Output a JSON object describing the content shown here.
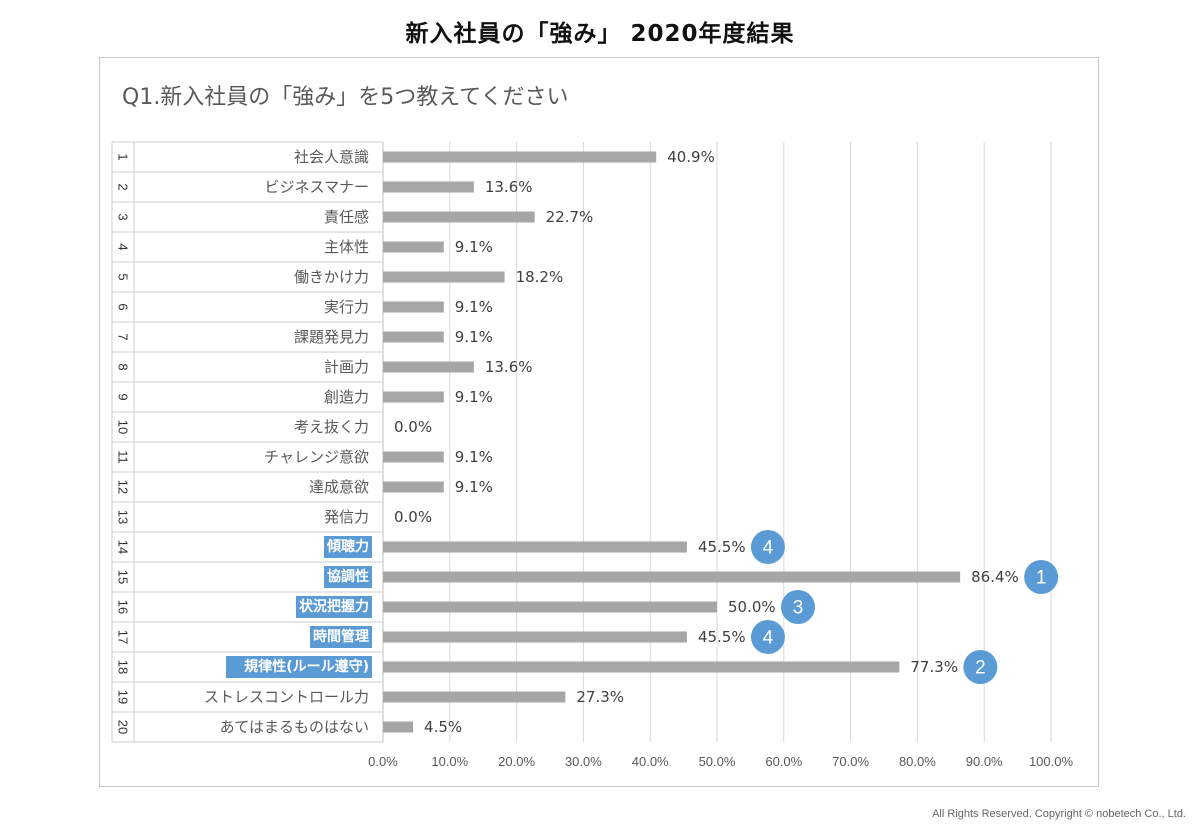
{
  "header": {
    "title": "新入社員の「強み」 2020年度結果"
  },
  "footer": {
    "copyright": "All Rights Reserved. Copyright © nobetech Co., Ltd."
  },
  "colors": {
    "bar": "#a6a6a6",
    "highlight": "#5b9bd5",
    "grid": "#d9d9d9",
    "text": "#595959"
  },
  "chart_data": {
    "type": "bar",
    "orientation": "horizontal",
    "title": "Q1.新入社員の「強み」を5つ教えてください",
    "xlim": [
      0,
      100
    ],
    "x_ticks": [
      "0.0%",
      "10.0%",
      "20.0%",
      "30.0%",
      "40.0%",
      "50.0%",
      "60.0%",
      "70.0%",
      "80.0%",
      "90.0%",
      "100.0%"
    ],
    "grid": true,
    "categories": [
      {
        "no": "1",
        "label": "社会人意識",
        "value": 40.9,
        "value_label": "40.9%"
      },
      {
        "no": "2",
        "label": "ビジネスマナー",
        "value": 13.6,
        "value_label": "13.6%"
      },
      {
        "no": "3",
        "label": "責任感",
        "value": 22.7,
        "value_label": "22.7%"
      },
      {
        "no": "4",
        "label": "主体性",
        "value": 9.1,
        "value_label": "9.1%"
      },
      {
        "no": "5",
        "label": "働きかけ力",
        "value": 18.2,
        "value_label": "18.2%"
      },
      {
        "no": "6",
        "label": "実行力",
        "value": 9.1,
        "value_label": "9.1%"
      },
      {
        "no": "7",
        "label": "課題発見力",
        "value": 9.1,
        "value_label": "9.1%"
      },
      {
        "no": "8",
        "label": "計画力",
        "value": 13.6,
        "value_label": "13.6%"
      },
      {
        "no": "9",
        "label": "創造力",
        "value": 9.1,
        "value_label": "9.1%"
      },
      {
        "no": "10",
        "label": "考え抜く力",
        "value": 0.0,
        "value_label": "0.0%"
      },
      {
        "no": "11",
        "label": "チャレンジ意欲",
        "value": 9.1,
        "value_label": "9.1%"
      },
      {
        "no": "12",
        "label": "達成意欲",
        "value": 9.1,
        "value_label": "9.1%"
      },
      {
        "no": "13",
        "label": "発信力",
        "value": 0.0,
        "value_label": "0.0%"
      },
      {
        "no": "14",
        "label": "傾聴力",
        "value": 45.5,
        "value_label": "45.5%",
        "highlight": true,
        "rank": "4"
      },
      {
        "no": "15",
        "label": "協調性",
        "value": 86.4,
        "value_label": "86.4%",
        "highlight": true,
        "rank": "1"
      },
      {
        "no": "16",
        "label": "状況把握力",
        "value": 50.0,
        "value_label": "50.0%",
        "highlight": true,
        "rank": "3"
      },
      {
        "no": "17",
        "label": "時間管理",
        "value": 45.5,
        "value_label": "45.5%",
        "highlight": true,
        "rank": "4"
      },
      {
        "no": "18",
        "label": "規律性(ルール遵守)",
        "value": 77.3,
        "value_label": "77.3%",
        "highlight": true,
        "rank": "2"
      },
      {
        "no": "19",
        "label": "ストレスコントロール力",
        "value": 27.3,
        "value_label": "27.3%"
      },
      {
        "no": "20",
        "label": "あてはまるものはない",
        "value": 4.5,
        "value_label": "4.5%"
      }
    ]
  }
}
